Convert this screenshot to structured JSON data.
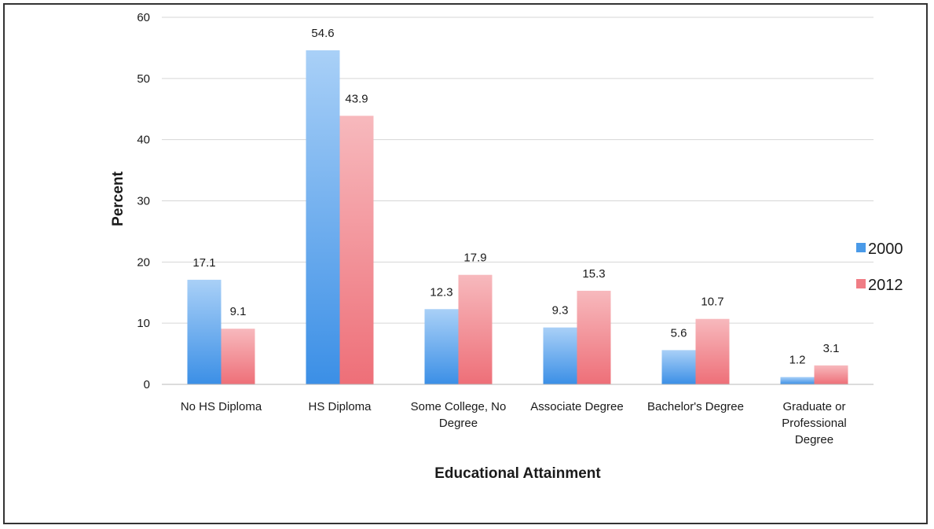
{
  "chart_data": {
    "type": "bar",
    "title": "",
    "xlabel": "Educational Attainment",
    "ylabel": "Percent",
    "ylim": [
      0,
      60
    ],
    "yticks": [
      0,
      10,
      20,
      30,
      40,
      50,
      60
    ],
    "grid": true,
    "legend_position": "right",
    "categories": [
      [
        "No HS Diploma"
      ],
      [
        "HS Diploma"
      ],
      [
        "Some College, No",
        "Degree"
      ],
      [
        "Associate Degree"
      ],
      [
        "Bachelor's Degree"
      ],
      [
        "Graduate or",
        "Professional",
        "Degree"
      ]
    ],
    "series": [
      {
        "name": "2000",
        "color": "#4a9ae8",
        "values": [
          17.1,
          54.6,
          12.3,
          9.3,
          5.6,
          1.2
        ]
      },
      {
        "name": "2012",
        "color": "#f07d85",
        "values": [
          9.1,
          43.9,
          17.9,
          15.3,
          10.7,
          3.1
        ]
      }
    ]
  }
}
